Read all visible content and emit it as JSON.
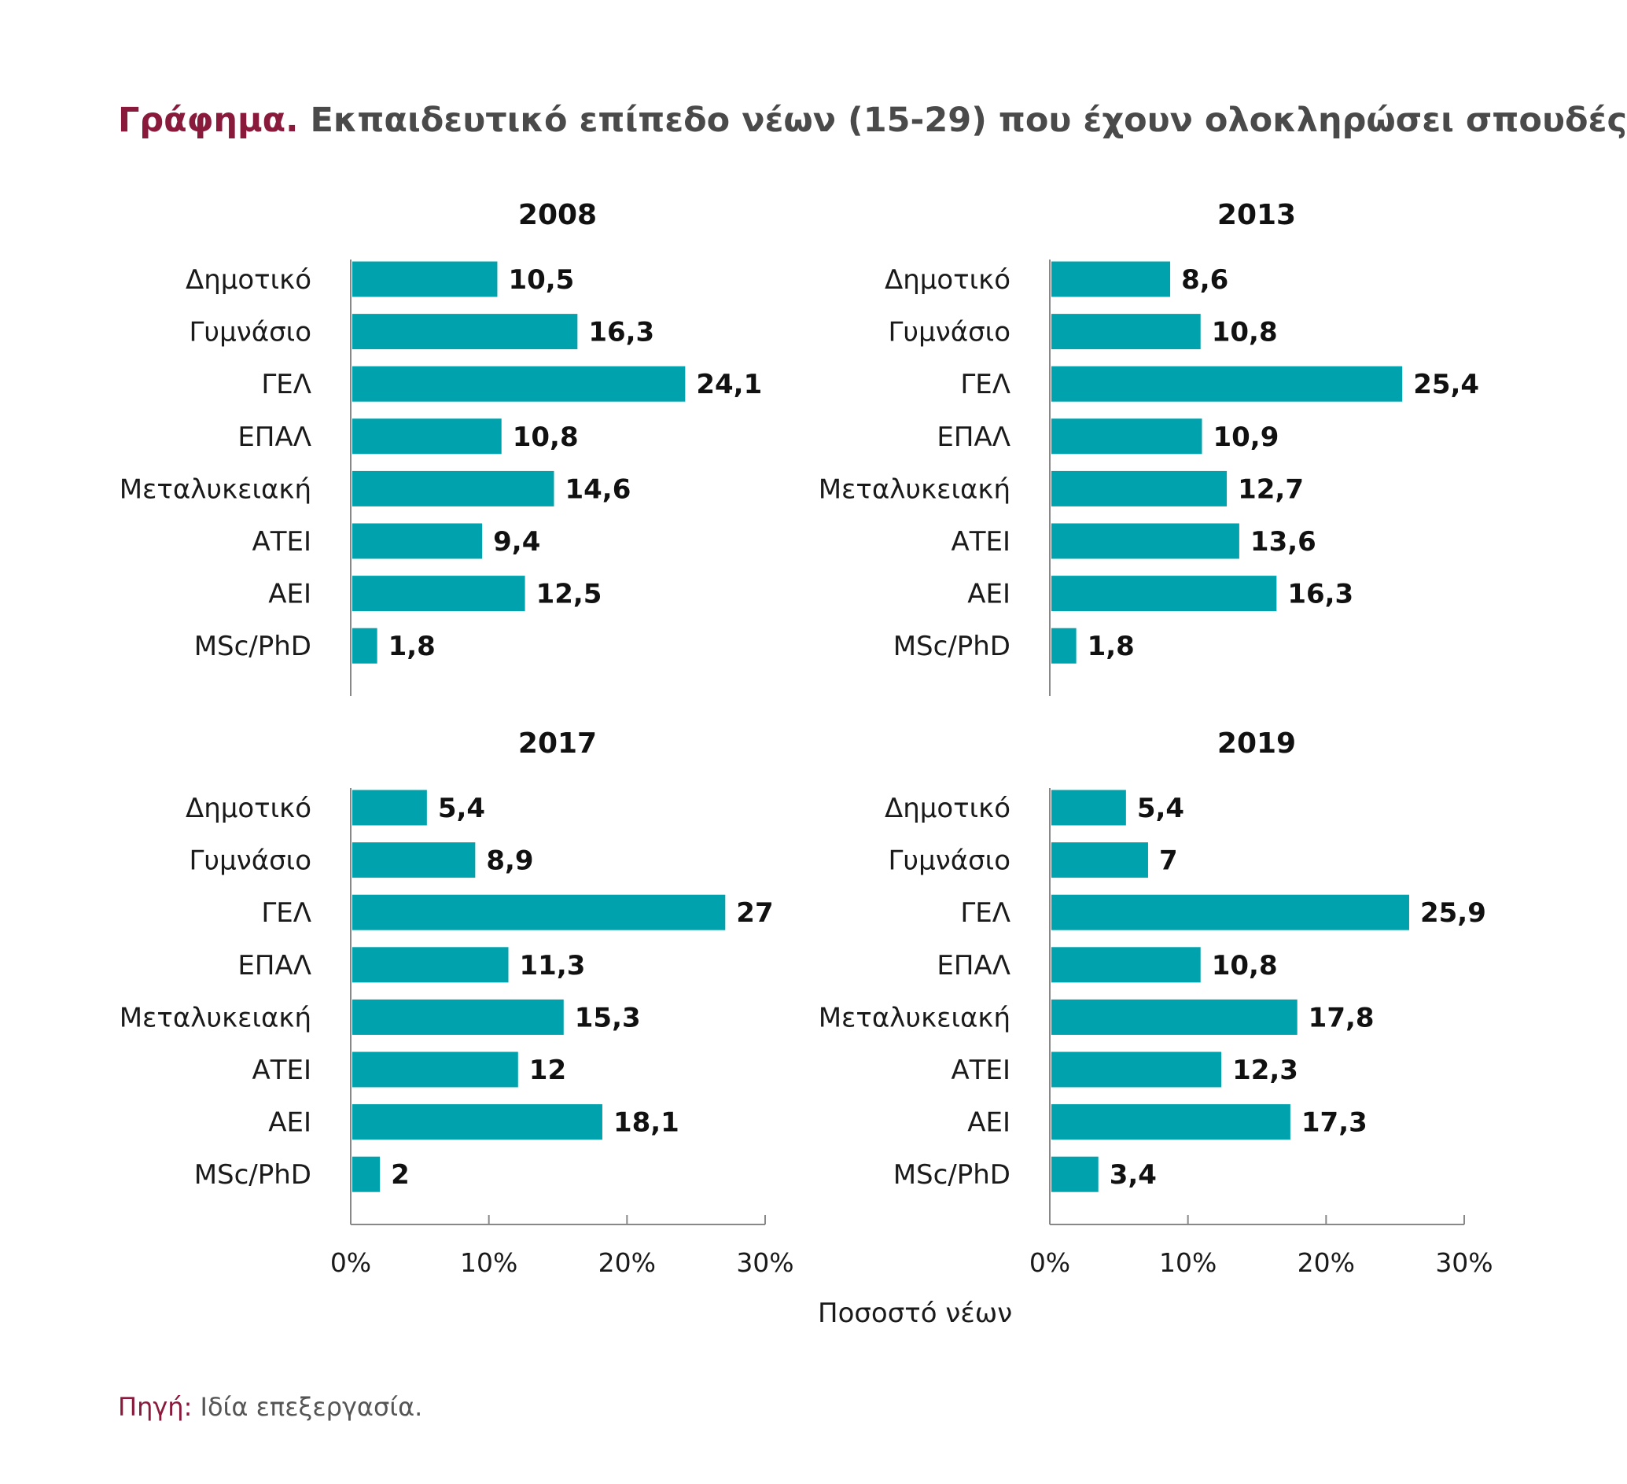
{
  "title": {
    "lead": "Γράφημα.",
    "rest": "Εκπαιδευτικό επίπεδο νέων (15-29) που έχουν ολοκληρώσει σπουδές"
  },
  "chart_data": [
    {
      "type": "bar",
      "orientation": "horizontal",
      "title": "2008",
      "categories": [
        "Δημοτικό",
        "Γυμνάσιο",
        "ΓΕΛ",
        "ΕΠΑΛ",
        "Μεταλυκειακή",
        "ΑΤΕΙ",
        "ΑΕΙ",
        "MSc/PhD"
      ],
      "values": [
        10.5,
        16.3,
        24.1,
        10.8,
        14.6,
        9.4,
        12.5,
        1.8
      ],
      "value_labels": [
        "10,5",
        "16,3",
        "24,1",
        "10,8",
        "14,6",
        "9,4",
        "12,5",
        "1,8"
      ],
      "xlim": [
        0,
        30
      ],
      "show_axis": false
    },
    {
      "type": "bar",
      "orientation": "horizontal",
      "title": "2013",
      "categories": [
        "Δημοτικό",
        "Γυμνάσιο",
        "ΓΕΛ",
        "ΕΠΑΛ",
        "Μεταλυκειακή",
        "ΑΤΕΙ",
        "ΑΕΙ",
        "MSc/PhD"
      ],
      "values": [
        8.6,
        10.8,
        25.4,
        10.9,
        12.7,
        13.6,
        16.3,
        1.8
      ],
      "value_labels": [
        "8,6",
        "10,8",
        "25,4",
        "10,9",
        "12,7",
        "13,6",
        "16,3",
        "1,8"
      ],
      "xlim": [
        0,
        30
      ],
      "show_axis": false
    },
    {
      "type": "bar",
      "orientation": "horizontal",
      "title": "2017",
      "categories": [
        "Δημοτικό",
        "Γυμνάσιο",
        "ΓΕΛ",
        "ΕΠΑΛ",
        "Μεταλυκειακή",
        "ΑΤΕΙ",
        "ΑΕΙ",
        "MSc/PhD"
      ],
      "values": [
        5.4,
        8.9,
        27,
        11.3,
        15.3,
        12,
        18.1,
        2
      ],
      "value_labels": [
        "5,4",
        "8,9",
        "27",
        "11,3",
        "15,3",
        "12",
        "18,1",
        "2"
      ],
      "xlim": [
        0,
        30
      ],
      "show_axis": true,
      "xticks": [
        "0%",
        "10%",
        "20%",
        "30%"
      ]
    },
    {
      "type": "bar",
      "orientation": "horizontal",
      "title": "2019",
      "categories": [
        "Δημοτικό",
        "Γυμνάσιο",
        "ΓΕΛ",
        "ΕΠΑΛ",
        "Μεταλυκειακή",
        "ΑΤΕΙ",
        "ΑΕΙ",
        "MSc/PhD"
      ],
      "values": [
        5.4,
        7,
        25.9,
        10.8,
        17.8,
        12.3,
        17.3,
        3.4
      ],
      "value_labels": [
        "5,4",
        "7",
        "25,9",
        "10,8",
        "17,8",
        "12,3",
        "17,3",
        "3,4"
      ],
      "xlim": [
        0,
        30
      ],
      "show_axis": true,
      "xticks": [
        "0%",
        "10%",
        "20%",
        "30%"
      ]
    }
  ],
  "xlabel": "Ποσοστό νέων",
  "source": {
    "lead": "Πηγή:",
    "text": "Ιδία επεξεργασία."
  },
  "colors": {
    "bar": "#00a3ad",
    "accent": "#8a1a3c",
    "axis": "#888888"
  }
}
